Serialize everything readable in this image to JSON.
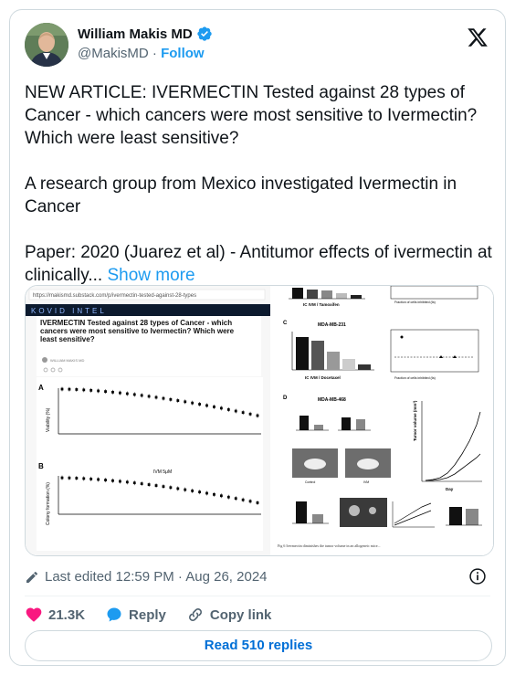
{
  "author": {
    "name": "William Makis MD",
    "handle": "@MakisMD",
    "separator": "·",
    "follow_label": "Follow"
  },
  "tweet": {
    "text": "NEW ARTICLE: IVERMECTIN Tested against 28 types of Cancer - which cancers were most sensitive to Ivermectin? Which were least sensitive?\n\nA research group from Mexico investigated Ivermectin in Cancer\n\nPaper: 2020 (Juarez et al) - Antitumor effects of ivermectin at clinically... ",
    "show_more": "Show more"
  },
  "media": {
    "url_bar": "https://makismd.substack.com/p/ivermectin-tested-against-28-types",
    "banner": "KOVID INTEL",
    "article_title": "IVERMECTIN Tested against 28 types of Cancer - which cancers were most sensitive to Ivermectin? Which were least sensitive?",
    "article_author": "WILLIAM MAKIS MD",
    "panel_a": "A",
    "panel_b": "B",
    "ylabel_a": "Viability (%)",
    "ylabel_b": "Colony formation (%)",
    "ivm_label": "IVM 5μM",
    "panel_c_title": "MDA-MB-231",
    "panel_c_xlabel": "IC IVM / Docetaxel",
    "panel_top_xlabel": "IC IVM / Tamoxifen",
    "panel_d_title": "MDA-MB-468",
    "fraction_label": "Fraction of cells inhibited (fa)",
    "tumor_volume": "Tumor volume (mm³)",
    "day_label": "Day",
    "control_label": "Control",
    "ivm_short": "IVM",
    "caption": "Fig 6  Ivermectin diminishes the tumor volume in an allogeneic mice..."
  },
  "meta": {
    "edited": "Last edited 12:59 PM · Aug 26, 2024"
  },
  "actions": {
    "likes": "21.3K",
    "reply": "Reply",
    "copy_link": "Copy link",
    "read_replies": "Read 510 replies"
  },
  "colors": {
    "accent": "#1d9bf0",
    "like": "#f91880",
    "text": "#0f1419",
    "muted": "#536471"
  }
}
